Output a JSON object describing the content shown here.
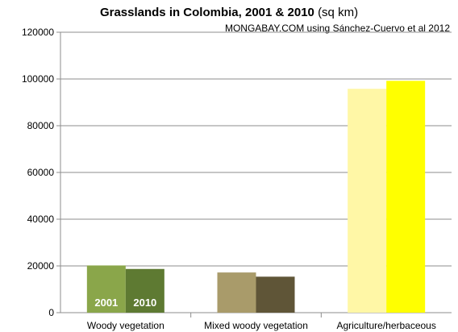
{
  "chart_data": {
    "type": "bar",
    "title_main": "Grasslands in Colombia, 2001 & 2010",
    "title_unit": "(sq km)",
    "subtitle": "MONGABAY.COM using Sánchez-Cuervo et al 2012",
    "categories": [
      "Woody vegetation",
      "Mixed woody vegetation",
      "Agriculture/herbaceous"
    ],
    "series": [
      {
        "name": "2001",
        "values": [
          20200,
          17200,
          95800
        ]
      },
      {
        "name": "2010",
        "values": [
          18700,
          15400,
          99200
        ]
      }
    ],
    "bar_colors": [
      [
        "#8aa64a",
        "#5e7a32"
      ],
      [
        "#a99b6a",
        "#5f5537"
      ],
      [
        "#fff7a6",
        "#ffff00"
      ]
    ],
    "ylim": [
      0,
      120000
    ],
    "yticks": [
      0,
      20000,
      40000,
      60000,
      80000,
      100000,
      120000
    ],
    "yticks_labels": [
      "0",
      "20000",
      "40000",
      "60000",
      "80000",
      "100000",
      "120000"
    ],
    "grid": true,
    "legend": "inside first category bars"
  }
}
